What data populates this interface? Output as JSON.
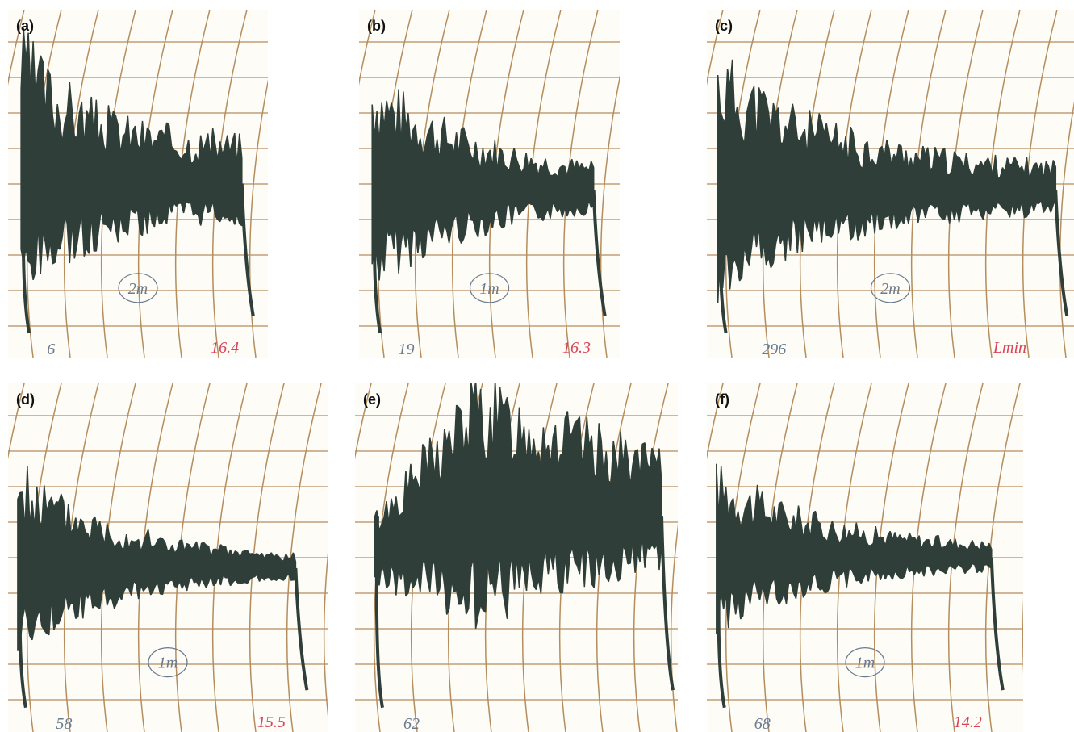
{
  "panels": [
    {
      "label": "(a)",
      "scale": "2m",
      "left_note": "6",
      "right_note": "16.4"
    },
    {
      "label": "(b)",
      "scale": "1m",
      "left_note": "19",
      "right_note": "16.3"
    },
    {
      "label": "(c)",
      "scale": "2m",
      "left_note": "296",
      "right_note": "Lmin"
    },
    {
      "label": "(d)",
      "scale": "1m",
      "left_note": "58",
      "right_note": "15.5"
    },
    {
      "label": "(e)",
      "left_note": "62"
    },
    {
      "label": "(f)",
      "scale": "1m",
      "left_note": "68",
      "right_note": "14.2"
    }
  ]
}
